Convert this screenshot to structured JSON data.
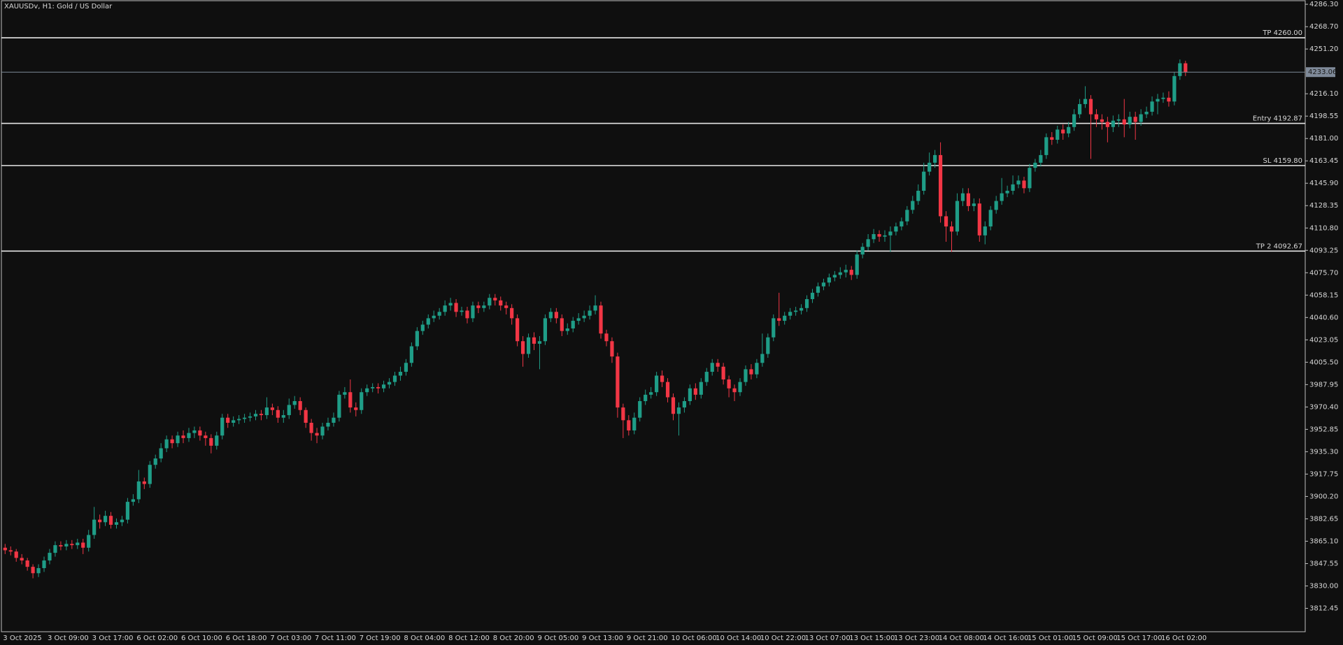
{
  "chart_data": {
    "type": "candlestick",
    "title": "XAUUSDv, H1:  Gold / US Dollar",
    "colors": {
      "up": "#1f9d87",
      "down": "#f23645",
      "background": "#0f0f0f",
      "level": "#e6e6e6",
      "price_line": "#7f8a99"
    },
    "categories": [
      "3 Oct 2025",
      null,
      null,
      null,
      null,
      null,
      null,
      null,
      "3 Oct 09:00",
      null,
      null,
      null,
      null,
      null,
      null,
      null,
      "3 Oct 17:00",
      null,
      null,
      null,
      null,
      null,
      null,
      null,
      "6 Oct 02:00",
      null,
      null,
      null,
      null,
      null,
      null,
      null,
      "6 Oct 10:00",
      null,
      null,
      null,
      null,
      null,
      null,
      null,
      "6 Oct 18:00",
      null,
      null,
      null,
      null,
      null,
      null,
      null,
      "7 Oct 03:00",
      null,
      null,
      null,
      null,
      null,
      null,
      null,
      "7 Oct 11:00",
      null,
      null,
      null,
      null,
      null,
      null,
      null,
      "7 Oct 19:00",
      null,
      null,
      null,
      null,
      null,
      null,
      null,
      "8 Oct 04:00",
      null,
      null,
      null,
      null,
      null,
      null,
      null,
      "8 Oct 12:00",
      null,
      null,
      null,
      null,
      null,
      null,
      null,
      "8 Oct 20:00",
      null,
      null,
      null,
      null,
      null,
      null,
      null,
      "9 Oct 05:00",
      null,
      null,
      null,
      null,
      null,
      null,
      null,
      "9 Oct 13:00",
      null,
      null,
      null,
      null,
      null,
      null,
      null,
      "9 Oct 21:00",
      null,
      null,
      null,
      null,
      null,
      null,
      null,
      "10 Oct 06:00",
      null,
      null,
      null,
      null,
      null,
      null,
      null,
      "10 Oct 14:00",
      null,
      null,
      null,
      null,
      null,
      null,
      null,
      "10 Oct 22:00",
      null,
      null,
      null,
      null,
      null,
      null,
      null,
      "13 Oct 07:00",
      null,
      null,
      null,
      null,
      null,
      null,
      null,
      "13 Oct 15:00",
      null,
      null,
      null,
      null,
      null,
      null,
      null,
      "13 Oct 23:00",
      null,
      null,
      null,
      null,
      null,
      null,
      null,
      "14 Oct 08:00",
      null,
      null,
      null,
      null,
      null,
      null,
      null,
      "14 Oct 16:00",
      null,
      null,
      null,
      null,
      null,
      null,
      null,
      "15 Oct 01:00",
      null,
      null,
      null,
      null,
      null,
      null,
      null,
      "15 Oct 09:00",
      null,
      null,
      null,
      null,
      null,
      null,
      null,
      "15 Oct 17:00",
      null,
      null,
      null,
      null,
      null,
      null,
      null,
      "16 Oct 02:00",
      null,
      null,
      null,
      null
    ],
    "open": [
      3860,
      3858,
      3857,
      3852,
      3850,
      3845,
      3840,
      3844,
      3850,
      3856,
      3862,
      3861,
      3863,
      3862,
      3864,
      3860,
      3870,
      3882,
      3880,
      3885,
      3878,
      3880,
      3882,
      3896,
      3898,
      3912,
      3910,
      3925,
      3930,
      3938,
      3945,
      3942,
      3948,
      3946,
      3950,
      3952,
      3948,
      3946,
      3940,
      3948,
      3962,
      3958,
      3960,
      3961,
      3962,
      3963,
      3965,
      3964,
      3970,
      3968,
      3962,
      3964,
      3972,
      3975,
      3968,
      3958,
      3950,
      3948,
      3955,
      3958,
      3962,
      3980,
      3982,
      3970,
      3968,
      3982,
      3985,
      3986,
      3985,
      3988,
      3990,
      3995,
      3998,
      4005,
      4018,
      4030,
      4035,
      4040,
      4042,
      4045,
      4050,
      4052,
      4045,
      4046,
      4040,
      4050,
      4048,
      4050,
      4056,
      4054,
      4050,
      4048,
      4040,
      4022,
      4012,
      4025,
      4020,
      4022,
      4040,
      4045,
      4040,
      4030,
      4032,
      4038,
      4040,
      4042,
      4046,
      4050,
      4028,
      4022,
      4010,
      3970,
      3960,
      3952,
      3962,
      3975,
      3980,
      3982,
      3995,
      3990,
      3978,
      3965,
      3970,
      3975,
      3985,
      3980,
      3990,
      3998,
      4005,
      4002,
      3992,
      3985,
      3982,
      3990,
      4000,
      3996,
      4005,
      4012,
      4025,
      4040,
      4038,
      4042,
      4045,
      4046,
      4048,
      4055,
      4060,
      4065,
      4068,
      4072,
      4074,
      4076,
      4078,
      4074,
      4090,
      4096,
      4102,
      4106,
      4104,
      4105,
      4108,
      4112,
      4116,
      4125,
      4132,
      4140,
      4155,
      4162,
      4168,
      4120,
      4112,
      4108,
      4132,
      4138,
      4128,
      4130,
      4105,
      4112,
      4125,
      4132,
      4138,
      4140,
      4145,
      4148,
      4142,
      4158,
      4162,
      4168,
      4182,
      4180,
      4188,
      4185,
      4190,
      4200,
      4208,
      4212,
      4200,
      4196,
      4194,
      4190,
      4195,
      4196,
      4192,
      4198,
      4194,
      4200,
      4202,
      4210,
      4212,
      4213,
      4210,
      4230,
      4240
    ],
    "high": [
      3863,
      3861,
      3859,
      3855,
      3852,
      3847,
      3847,
      3853,
      3859,
      3865,
      3865,
      3866,
      3866,
      3867,
      3867,
      3874,
      3892,
      3886,
      3889,
      3888,
      3883,
      3885,
      3899,
      3902,
      3921,
      3915,
      3928,
      3933,
      3942,
      3948,
      3948,
      3951,
      3952,
      3954,
      3955,
      3955,
      3951,
      3949,
      3951,
      3965,
      3965,
      3963,
      3964,
      3965,
      3966,
      3968,
      3968,
      3978,
      3973,
      3971,
      3968,
      3977,
      3979,
      3978,
      3970,
      3961,
      3954,
      3958,
      3962,
      3966,
      3983,
      3986,
      3992,
      3974,
      3985,
      3988,
      3989,
      3989,
      3991,
      3993,
      3998,
      4002,
      4008,
      4021,
      4033,
      4038,
      4043,
      4046,
      4048,
      4054,
      4056,
      4055,
      4049,
      4049,
      4053,
      4053,
      4053,
      4059,
      4059,
      4057,
      4053,
      4051,
      4043,
      4026,
      4028,
      4029,
      4026,
      4043,
      4048,
      4048,
      4043,
      4036,
      4041,
      4044,
      4046,
      4050,
      4058,
      4053,
      4031,
      4025,
      4013,
      3973,
      3964,
      3966,
      3978,
      3984,
      3986,
      3998,
      3999,
      3993,
      3981,
      3974,
      3978,
      3988,
      3989,
      3993,
      4001,
      4008,
      4008,
      4005,
      3995,
      3988,
      3993,
      4003,
      4004,
      4008,
      4028,
      4028,
      4043,
      4060,
      4045,
      4048,
      4049,
      4051,
      4058,
      4063,
      4068,
      4071,
      4075,
      4077,
      4080,
      4082,
      4081,
      4093,
      4099,
      4106,
      4110,
      4109,
      4109,
      4112,
      4115,
      4119,
      4128,
      4136,
      4145,
      4162,
      4170,
      4172,
      4178,
      4124,
      4116,
      4138,
      4142,
      4142,
      4134,
      4134,
      4116,
      4128,
      4136,
      4150,
      4144,
      4152,
      4152,
      4151,
      4161,
      4165,
      4172,
      4185,
      4186,
      4191,
      4192,
      4194,
      4204,
      4212,
      4222,
      4215,
      4204,
      4200,
      4198,
      4199,
      4200,
      4212,
      4202,
      4202,
      4204,
      4206,
      4214,
      4216,
      4217,
      4218,
      4233,
      4243,
      4242
    ],
    "low": [
      3855,
      3854,
      3849,
      3847,
      3842,
      3836,
      3837,
      3841,
      3847,
      3853,
      3858,
      3858,
      3859,
      3859,
      3855,
      3857,
      3867,
      3875,
      3877,
      3875,
      3875,
      3877,
      3879,
      3893,
      3895,
      3906,
      3907,
      3922,
      3927,
      3935,
      3938,
      3939,
      3942,
      3943,
      3946,
      3944,
      3940,
      3934,
      3937,
      3945,
      3954,
      3955,
      3957,
      3958,
      3959,
      3960,
      3960,
      3961,
      3964,
      3958,
      3958,
      3961,
      3969,
      3964,
      3954,
      3944,
      3942,
      3945,
      3952,
      3955,
      3959,
      3977,
      3966,
      3963,
      3965,
      3979,
      3982,
      3981,
      3982,
      3985,
      3987,
      3991,
      3995,
      4002,
      4015,
      4027,
      4032,
      4037,
      4039,
      4042,
      4046,
      4041,
      4042,
      4036,
      4037,
      4044,
      4045,
      4047,
      4050,
      4046,
      4043,
      4035,
      4018,
      4002,
      4009,
      4015,
      4000,
      4019,
      4037,
      4036,
      4026,
      4027,
      4029,
      4035,
      4037,
      4039,
      4043,
      4024,
      4018,
      4005,
      3962,
      3946,
      3948,
      3949,
      3959,
      3972,
      3977,
      3979,
      3986,
      3974,
      3960,
      3948,
      3966,
      3972,
      3976,
      3977,
      3987,
      3995,
      3998,
      3988,
      3978,
      3975,
      3979,
      3987,
      3992,
      3993,
      4002,
      4009,
      4022,
      4034,
      4035,
      4039,
      4042,
      4043,
      4045,
      4052,
      4057,
      4062,
      4065,
      4069,
      4071,
      4072,
      4070,
      4071,
      4087,
      4093,
      4099,
      4100,
      4100,
      4092,
      4105,
      4109,
      4113,
      4122,
      4129,
      4137,
      4152,
      4158,
      4115,
      4100,
      4092,
      4105,
      4128,
      4124,
      4124,
      4100,
      4098,
      4109,
      4122,
      4129,
      4135,
      4137,
      4142,
      4138,
      4139,
      4155,
      4159,
      4165,
      4176,
      4177,
      4180,
      4182,
      4187,
      4197,
      4205,
      4165,
      4190,
      4188,
      4178,
      4186,
      4190,
      4182,
      4189,
      4180,
      4191,
      4197,
      4199,
      4200,
      4209,
      4206,
      4207,
      4227,
      4230
    ],
    "close": [
      3858,
      3857,
      3852,
      3850,
      3845,
      3840,
      3844,
      3850,
      3856,
      3862,
      3861,
      3863,
      3862,
      3864,
      3860,
      3870,
      3882,
      3880,
      3885,
      3878,
      3880,
      3882,
      3896,
      3898,
      3912,
      3910,
      3925,
      3930,
      3938,
      3945,
      3942,
      3948,
      3946,
      3950,
      3952,
      3948,
      3946,
      3940,
      3948,
      3962,
      3958,
      3960,
      3961,
      3962,
      3963,
      3965,
      3964,
      3970,
      3968,
      3962,
      3964,
      3972,
      3975,
      3968,
      3958,
      3950,
      3948,
      3955,
      3958,
      3962,
      3980,
      3982,
      3970,
      3968,
      3982,
      3985,
      3986,
      3985,
      3988,
      3990,
      3995,
      3998,
      4005,
      4018,
      4030,
      4035,
      4040,
      4042,
      4045,
      4050,
      4052,
      4045,
      4046,
      4040,
      4050,
      4048,
      4050,
      4056,
      4054,
      4050,
      4048,
      4040,
      4022,
      4012,
      4025,
      4020,
      4022,
      4040,
      4045,
      4040,
      4030,
      4032,
      4038,
      4040,
      4042,
      4046,
      4050,
      4028,
      4022,
      4010,
      3970,
      3960,
      3952,
      3962,
      3975,
      3980,
      3982,
      3995,
      3990,
      3978,
      3965,
      3970,
      3975,
      3985,
      3980,
      3990,
      3998,
      4005,
      4002,
      3992,
      3985,
      3982,
      3990,
      4000,
      3996,
      4005,
      4012,
      4025,
      4040,
      4038,
      4042,
      4045,
      4046,
      4048,
      4055,
      4060,
      4065,
      4068,
      4072,
      4074,
      4076,
      4078,
      4074,
      4090,
      4096,
      4102,
      4106,
      4104,
      4105,
      4108,
      4112,
      4116,
      4125,
      4132,
      4140,
      4155,
      4162,
      4168,
      4120,
      4112,
      4108,
      4132,
      4138,
      4128,
      4130,
      4105,
      4112,
      4125,
      4132,
      4138,
      4140,
      4145,
      4148,
      4142,
      4158,
      4162,
      4168,
      4182,
      4180,
      4188,
      4185,
      4190,
      4200,
      4208,
      4212,
      4200,
      4196,
      4194,
      4190,
      4195,
      4196,
      4192,
      4198,
      4194,
      4200,
      4202,
      4210,
      4212,
      4213,
      4210,
      4230,
      4240,
      4233.06
    ],
    "ylim": [
      3794.1,
      4289.64
    ],
    "yticks": [
      {
        "value": 4286.3,
        "label": "4286.30"
      },
      {
        "value": 4268.7,
        "label": "4268.70"
      },
      {
        "value": 4251.2,
        "label": "4251.20"
      },
      {
        "value": 4216.1,
        "label": "4216.10"
      },
      {
        "value": 4198.55,
        "label": "4198.55"
      },
      {
        "value": 4181.0,
        "label": "4181.00"
      },
      {
        "value": 4163.45,
        "label": "4163.45"
      },
      {
        "value": 4145.9,
        "label": "4145.90"
      },
      {
        "value": 4128.35,
        "label": "4128.35"
      },
      {
        "value": 4110.8,
        "label": "4110.80"
      },
      {
        "value": 4093.25,
        "label": "4093.25"
      },
      {
        "value": 4075.7,
        "label": "4075.70"
      },
      {
        "value": 4058.15,
        "label": "4058.15"
      },
      {
        "value": 4040.6,
        "label": "4040.60"
      },
      {
        "value": 4023.05,
        "label": "4023.05"
      },
      {
        "value": 4005.5,
        "label": "4005.50"
      },
      {
        "value": 3987.95,
        "label": "3987.95"
      },
      {
        "value": 3970.4,
        "label": "3970.40"
      },
      {
        "value": 3952.85,
        "label": "3952.85"
      },
      {
        "value": 3935.3,
        "label": "3935.30"
      },
      {
        "value": 3917.75,
        "label": "3917.75"
      },
      {
        "value": 3900.2,
        "label": "3900.20"
      },
      {
        "value": 3882.65,
        "label": "3882.65"
      },
      {
        "value": 3865.1,
        "label": "3865.10"
      },
      {
        "value": 3847.55,
        "label": "3847.55"
      },
      {
        "value": 3830.0,
        "label": "3830.00"
      },
      {
        "value": 3812.45,
        "label": "3812.45"
      }
    ],
    "levels": [
      {
        "label": "TP 4260.00",
        "value": 4260.0
      },
      {
        "label": "Entry 4192.87",
        "value": 4192.87
      },
      {
        "label": "SL 4159.80",
        "value": 4159.8
      },
      {
        "label": "TP 2 4092.67",
        "value": 4092.67
      }
    ],
    "grid": false
  }
}
